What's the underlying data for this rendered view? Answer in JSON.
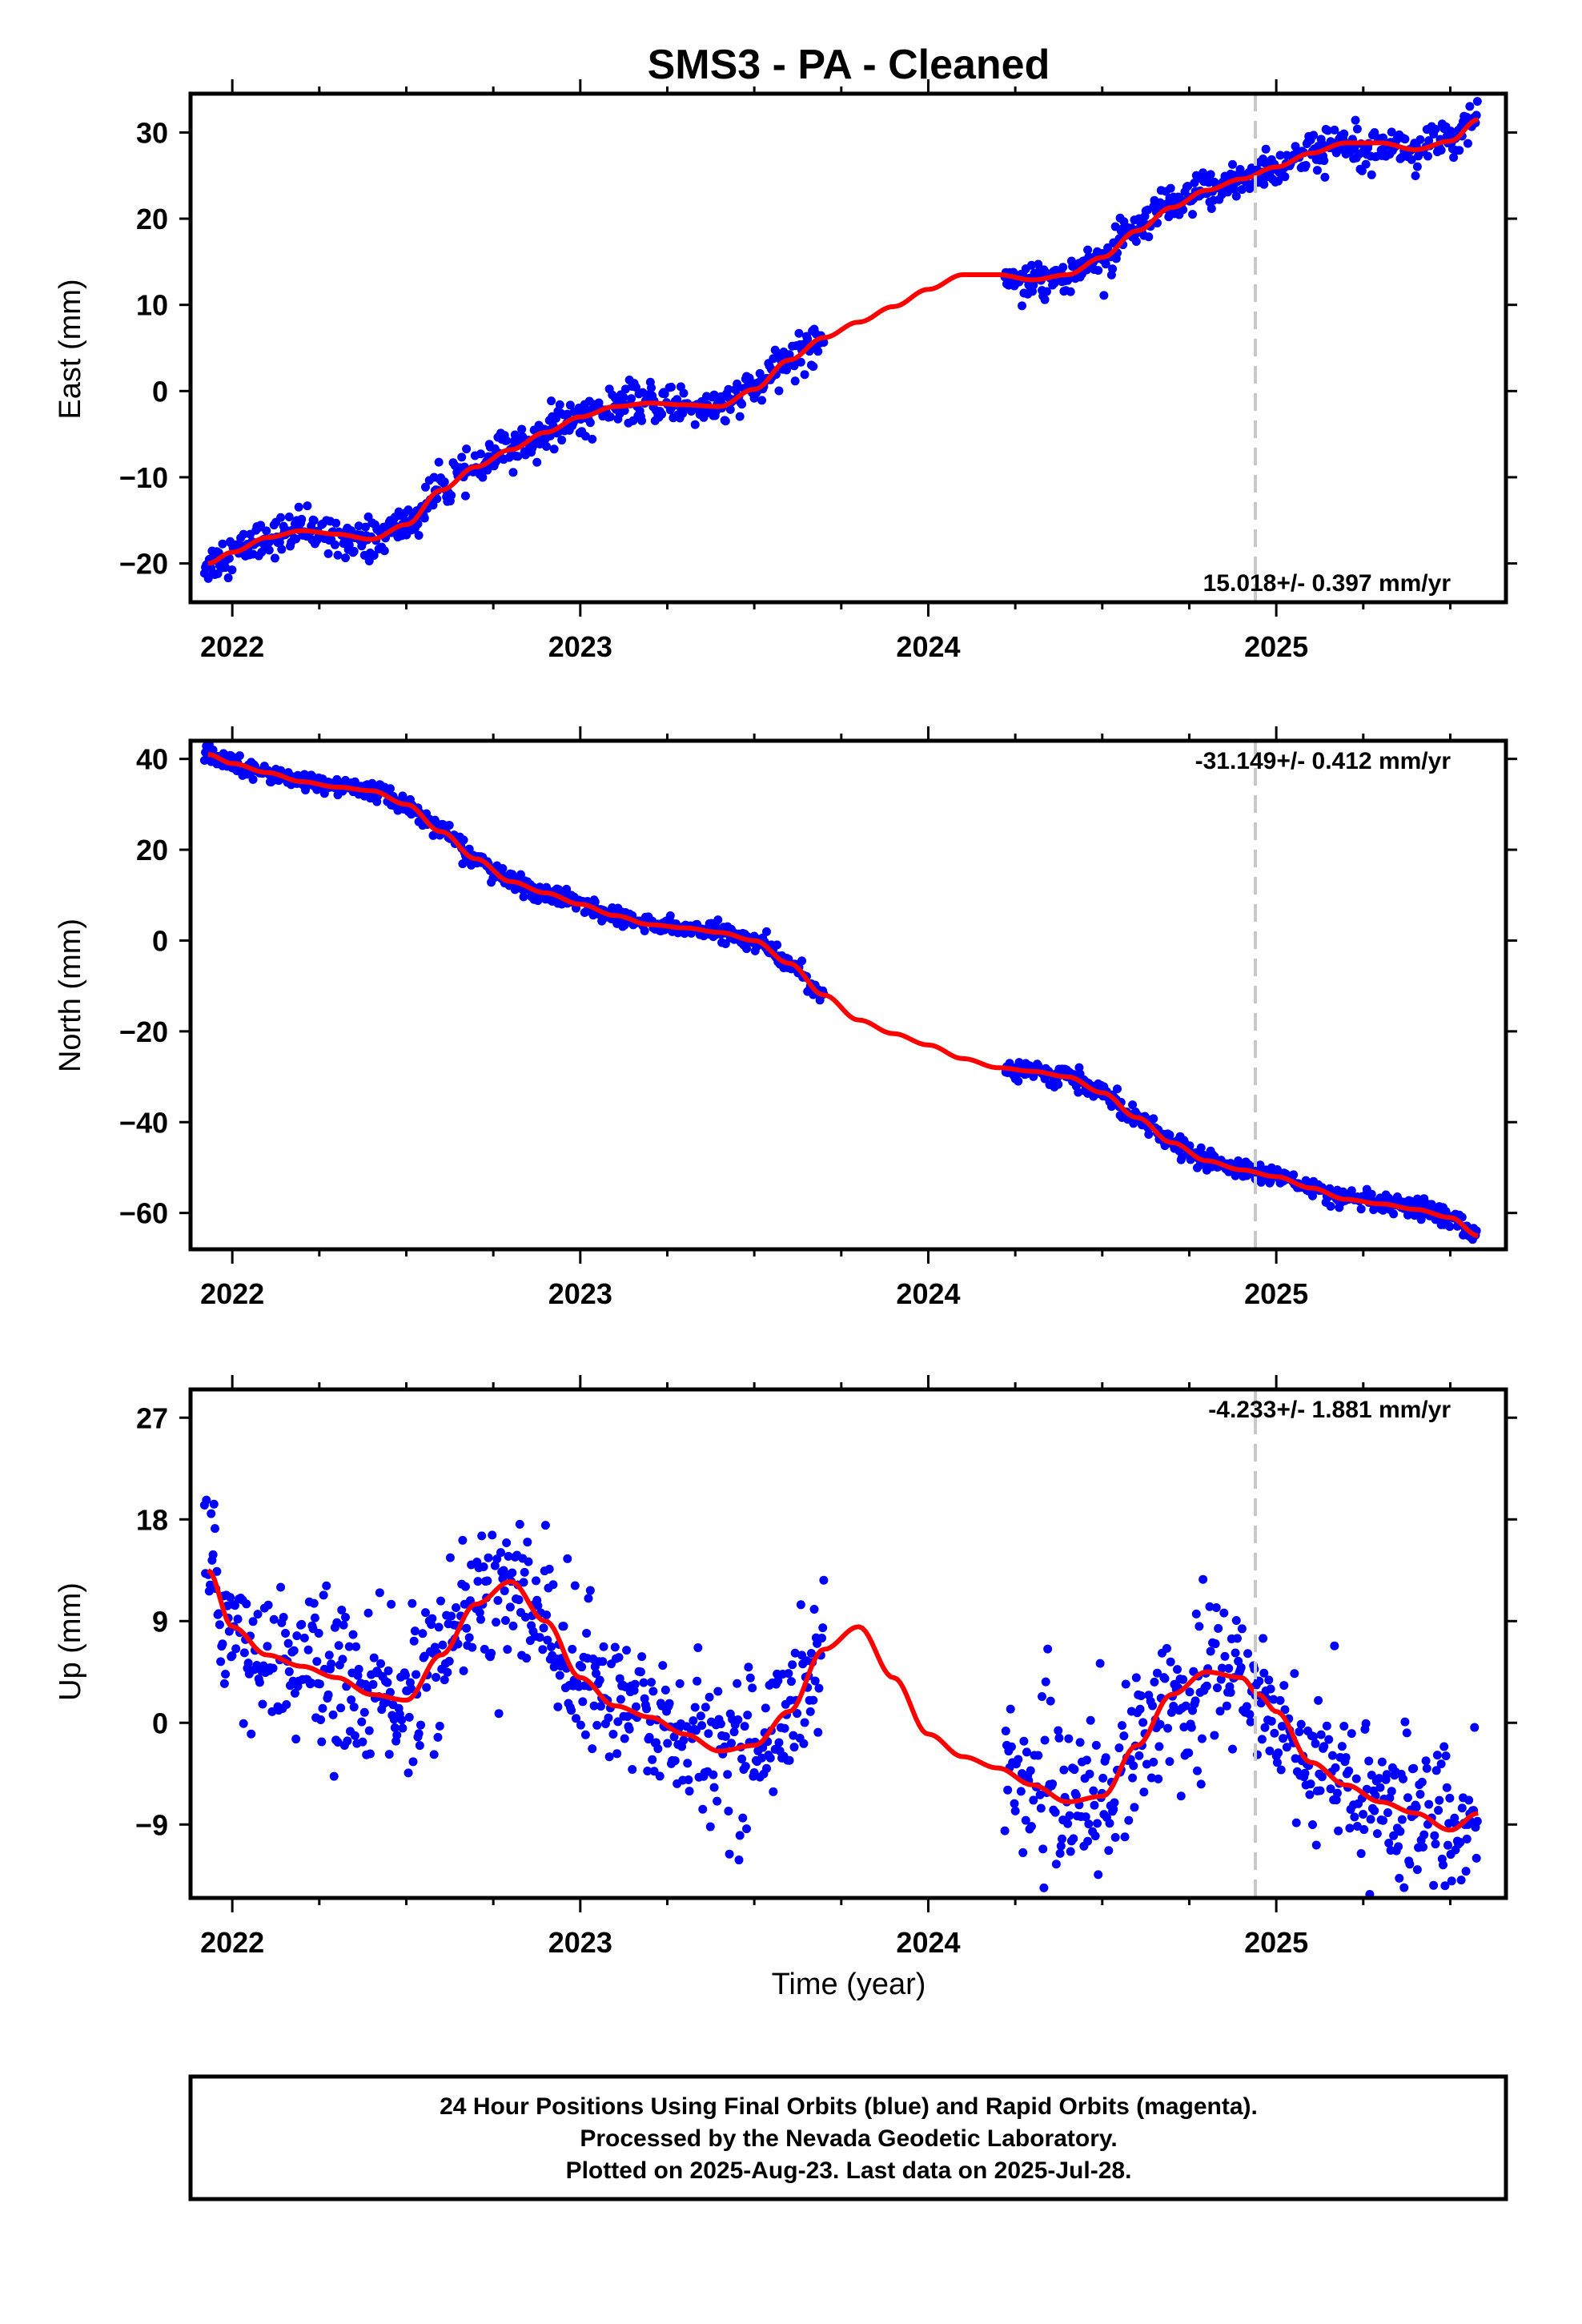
{
  "title": "SMS3  - PA - Cleaned",
  "footer": {
    "lines": [
      "24 Hour Positions Using Final Orbits (blue) and Rapid Orbits (magenta).",
      "Processed by the Nevada Geodetic Laboratory.",
      "Plotted on 2025-Aug-23. Last data on 2025-Jul-28."
    ]
  },
  "colors": {
    "points": "#0000ff",
    "fit": "#ff0000",
    "marker_line": "#c8c8c8",
    "frame": "#000000"
  },
  "chart_data": [
    {
      "type": "scatter",
      "panel": "east",
      "ylabel": "East (mm)",
      "xlabel": "",
      "xlim": [
        2021.88,
        2025.66
      ],
      "ylim": [
        -24.5,
        34.5
      ],
      "yticks": [
        -20,
        -10,
        0,
        10,
        20,
        30
      ],
      "xticks": [
        2022,
        2023,
        2024,
        2025
      ],
      "vertical_marker_x": 2024.94,
      "rate_label": "15.018+/- 0.397 mm/yr",
      "rate_label_position": "bottom-right",
      "data_gap": [
        2023.7,
        2024.22
      ],
      "series": [
        {
          "role": "fit",
          "x": [
            2021.93,
            2022.0,
            2022.1,
            2022.2,
            2022.3,
            2022.4,
            2022.5,
            2022.6,
            2022.7,
            2022.8,
            2022.9,
            2023.0,
            2023.1,
            2023.2,
            2023.3,
            2023.4,
            2023.5,
            2023.6,
            2023.7,
            2023.8,
            2023.9,
            2024.0,
            2024.1,
            2024.2,
            2024.3,
            2024.4,
            2024.5,
            2024.6,
            2024.7,
            2024.8,
            2024.9,
            2025.0,
            2025.1,
            2025.2,
            2025.3,
            2025.4,
            2025.5,
            2025.58
          ],
          "values": [
            -20.0,
            -18.7,
            -17.0,
            -16.2,
            -16.6,
            -17.2,
            -15.5,
            -11.5,
            -8.8,
            -6.8,
            -4.8,
            -3.0,
            -1.8,
            -1.4,
            -1.6,
            -1.8,
            0.2,
            3.6,
            6.2,
            8.0,
            9.8,
            11.8,
            13.5,
            13.5,
            12.9,
            13.5,
            15.5,
            18.6,
            21.3,
            23.3,
            24.6,
            26.0,
            27.6,
            28.8,
            28.8,
            28.0,
            29.0,
            31.5
          ]
        },
        {
          "role": "observations",
          "name": "Final Orbits (blue)",
          "segments": [
            [
              2021.92,
              2023.7
            ],
            [
              2024.22,
              2025.58
            ]
          ],
          "scatter_mm": 1.1
        }
      ]
    },
    {
      "type": "scatter",
      "panel": "north",
      "ylabel": "North (mm)",
      "xlabel": "",
      "xlim": [
        2021.88,
        2025.66
      ],
      "ylim": [
        -68,
        44
      ],
      "yticks": [
        -60,
        -40,
        -20,
        0,
        20,
        40
      ],
      "xticks": [
        2022,
        2023,
        2024,
        2025
      ],
      "vertical_marker_x": 2024.94,
      "rate_label": "-31.149+/- 0.412 mm/yr",
      "rate_label_position": "top-right",
      "data_gap": [
        2023.7,
        2024.22
      ],
      "series": [
        {
          "role": "fit",
          "x": [
            2021.93,
            2022.0,
            2022.1,
            2022.2,
            2022.3,
            2022.4,
            2022.5,
            2022.6,
            2022.7,
            2022.8,
            2022.9,
            2023.0,
            2023.1,
            2023.2,
            2023.3,
            2023.4,
            2023.5,
            2023.6,
            2023.7,
            2023.8,
            2023.9,
            2024.0,
            2024.1,
            2024.2,
            2024.3,
            2024.4,
            2024.5,
            2024.6,
            2024.7,
            2024.8,
            2024.9,
            2025.0,
            2025.1,
            2025.2,
            2025.3,
            2025.4,
            2025.5,
            2025.58
          ],
          "values": [
            41.0,
            39.0,
            37.0,
            35.0,
            33.8,
            33.0,
            30.0,
            24.0,
            18.0,
            13.0,
            10.5,
            8.0,
            5.5,
            3.5,
            2.8,
            1.8,
            0.0,
            -5.0,
            -12.0,
            -17.5,
            -20.5,
            -23.0,
            -26.0,
            -28.0,
            -28.8,
            -30.0,
            -33.5,
            -39.0,
            -44.5,
            -48.5,
            -50.5,
            -52.0,
            -54.5,
            -57.0,
            -58.0,
            -59.2,
            -61.0,
            -65.0
          ]
        },
        {
          "role": "observations",
          "name": "Final Orbits (blue)",
          "segments": [
            [
              2021.92,
              2023.7
            ],
            [
              2024.22,
              2025.58
            ]
          ],
          "scatter_mm": 1.0
        }
      ]
    },
    {
      "type": "scatter",
      "panel": "up",
      "ylabel": "Up (mm)",
      "xlabel": "Time (year)",
      "xlim": [
        2021.88,
        2025.66
      ],
      "ylim": [
        -15.5,
        29.5
      ],
      "yticks": [
        -9,
        0,
        9,
        18,
        27
      ],
      "xticks": [
        2022,
        2023,
        2024,
        2025
      ],
      "vertical_marker_x": 2024.94,
      "rate_label": "-4.233+/- 1.881 mm/yr",
      "rate_label_position": "top-right",
      "data_gap": [
        2023.7,
        2024.22
      ],
      "series": [
        {
          "role": "fit",
          "x": [
            2021.93,
            2022.0,
            2022.1,
            2022.2,
            2022.3,
            2022.4,
            2022.5,
            2022.6,
            2022.7,
            2022.8,
            2022.9,
            2023.0,
            2023.1,
            2023.2,
            2023.3,
            2023.4,
            2023.5,
            2023.6,
            2023.7,
            2023.8,
            2023.9,
            2024.0,
            2024.1,
            2024.2,
            2024.3,
            2024.4,
            2024.5,
            2024.6,
            2024.7,
            2024.8,
            2024.9,
            2024.95,
            2025.0,
            2025.1,
            2025.2,
            2025.3,
            2025.4,
            2025.5,
            2025.58
          ],
          "values": [
            13.5,
            8.5,
            6.0,
            5.0,
            4.0,
            2.5,
            2.0,
            6.0,
            10.5,
            12.5,
            9.0,
            4.0,
            1.5,
            0.5,
            -1.0,
            -2.5,
            -2.0,
            1.0,
            6.5,
            8.5,
            4.0,
            -1.0,
            -3.0,
            -4.0,
            -5.5,
            -7.0,
            -6.5,
            -2.0,
            2.5,
            4.5,
            4.0,
            2.5,
            1.0,
            -3.5,
            -5.5,
            -7.0,
            -8.0,
            -9.5,
            -8.0
          ]
        },
        {
          "role": "observations",
          "name": "Final Orbits (blue)",
          "segments": [
            [
              2021.92,
              2023.7
            ],
            [
              2024.22,
              2025.58
            ]
          ],
          "scatter_mm": 3.3
        }
      ]
    }
  ]
}
